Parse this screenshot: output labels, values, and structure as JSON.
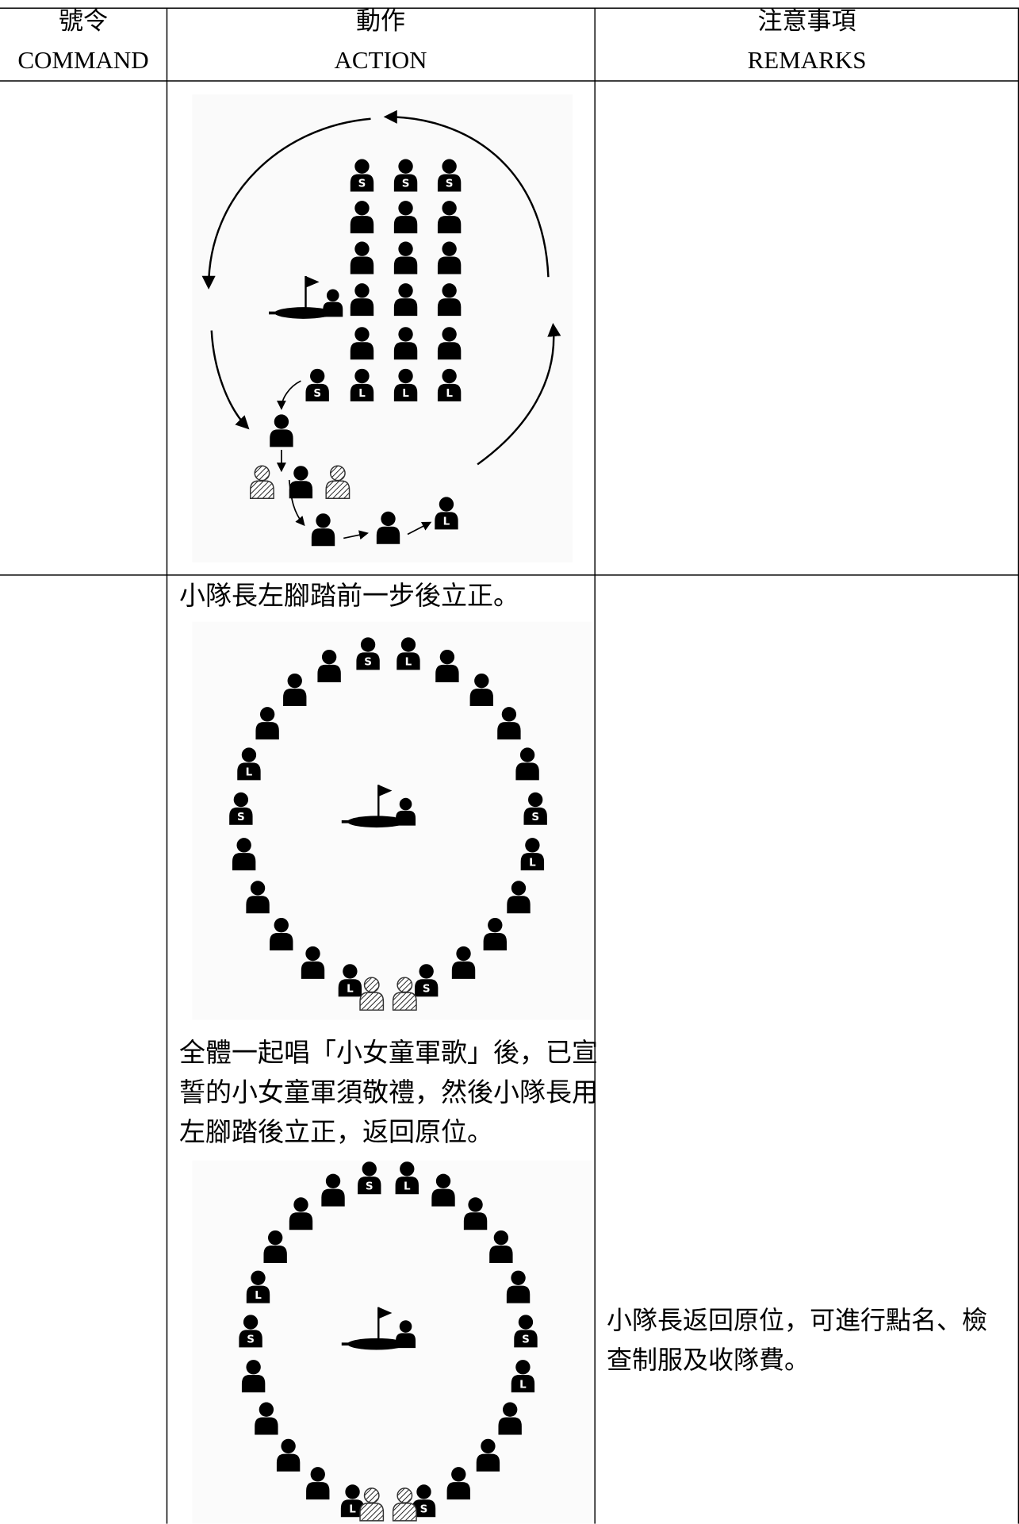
{
  "table": {
    "header": [
      {
        "zh": "號令",
        "en": "COMMAND"
      },
      {
        "zh": "動作",
        "en": "ACTION"
      },
      {
        "zh": "注意事項",
        "en": "REMARKS"
      }
    ],
    "rows": [
      {
        "action": [
          "小隊長左腳踏前一步後立正。",
          "全體一起唱「小女童軍歌」後，已宣誓的小女童軍須敬禮，然後小隊長用左腳踏後立正，返回原位。"
        ],
        "remarks": "小隊長返回原位，可進行點名、檢查制服及收隊費。"
      }
    ]
  },
  "badge_letters": [
    "S",
    "L"
  ]
}
